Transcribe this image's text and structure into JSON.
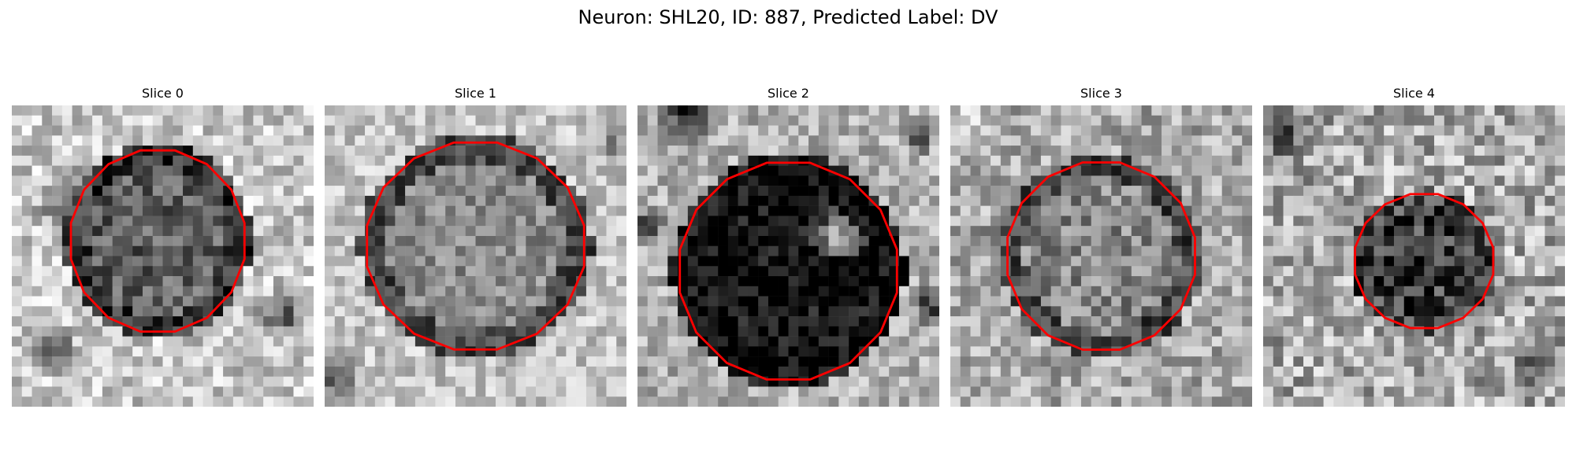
{
  "figure": {
    "title": "Neuron: SHL20, ID: 887, Predicted Label: DV"
  },
  "contour_color": "#ff0000",
  "slices": [
    {
      "label": "Slice 0"
    },
    {
      "label": "Slice 1"
    },
    {
      "label": "Slice 2"
    },
    {
      "label": "Slice 3"
    },
    {
      "label": "Slice 4"
    }
  ]
}
